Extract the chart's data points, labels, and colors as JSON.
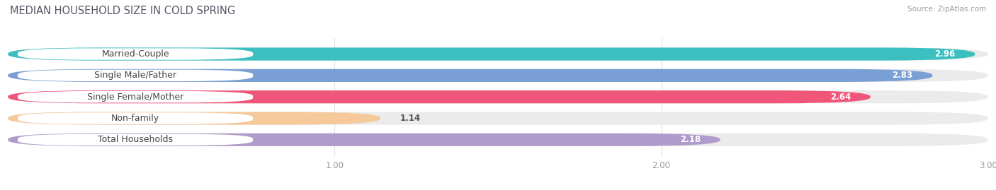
{
  "title": "MEDIAN HOUSEHOLD SIZE IN COLD SPRING",
  "source": "Source: ZipAtlas.com",
  "categories": [
    "Married-Couple",
    "Single Male/Father",
    "Single Female/Mother",
    "Non-family",
    "Total Households"
  ],
  "values": [
    2.96,
    2.83,
    2.64,
    1.14,
    2.18
  ],
  "bar_colors": [
    "#3bbfbf",
    "#7a9fd4",
    "#f0557a",
    "#f5c99a",
    "#b09ccc"
  ],
  "xlim": [
    0,
    3.0
  ],
  "xticks": [
    1.0,
    2.0,
    3.0
  ],
  "background_color": "#ffffff",
  "bar_bg_color": "#ebebeb",
  "title_fontsize": 10.5,
  "label_fontsize": 9,
  "value_fontsize": 8.5,
  "bar_height": 0.6,
  "label_text_colors": [
    "#444444",
    "#444444",
    "#444444",
    "#7a6000",
    "#444444"
  ]
}
